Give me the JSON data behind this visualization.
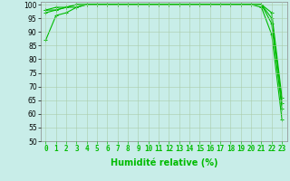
{
  "xlabel": "Humidité relative (%)",
  "background_color": "#c8ede8",
  "grid_color": "#aaccaa",
  "line_color": "#00bb00",
  "xlim": [
    -0.5,
    23.5
  ],
  "ylim": [
    50,
    101
  ],
  "yticks": [
    50,
    55,
    60,
    65,
    70,
    75,
    80,
    85,
    90,
    95,
    100
  ],
  "xticks": [
    0,
    1,
    2,
    3,
    4,
    5,
    6,
    7,
    8,
    9,
    10,
    11,
    12,
    13,
    14,
    15,
    16,
    17,
    18,
    19,
    20,
    21,
    22,
    23
  ],
  "series": [
    [
      87,
      96,
      97,
      99,
      100,
      100,
      100,
      100,
      100,
      100,
      100,
      100,
      100,
      100,
      100,
      100,
      100,
      100,
      100,
      100,
      100,
      99,
      89,
      58
    ],
    [
      98,
      98,
      99,
      99,
      100,
      100,
      100,
      100,
      100,
      100,
      100,
      100,
      100,
      100,
      100,
      100,
      100,
      100,
      100,
      100,
      100,
      100,
      93,
      62
    ],
    [
      98,
      99,
      99,
      100,
      100,
      100,
      100,
      100,
      100,
      100,
      100,
      100,
      100,
      100,
      100,
      100,
      100,
      100,
      100,
      100,
      100,
      100,
      95,
      64
    ],
    [
      97,
      98,
      99,
      100,
      100,
      100,
      100,
      100,
      100,
      100,
      100,
      100,
      100,
      100,
      100,
      100,
      100,
      100,
      100,
      100,
      100,
      100,
      97,
      66
    ]
  ],
  "marker": "+",
  "marker_size": 3,
  "line_width": 0.8,
  "xlabel_fontsize": 7,
  "tick_fontsize": 5.5,
  "figsize": [
    3.2,
    2.0
  ],
  "dpi": 100
}
